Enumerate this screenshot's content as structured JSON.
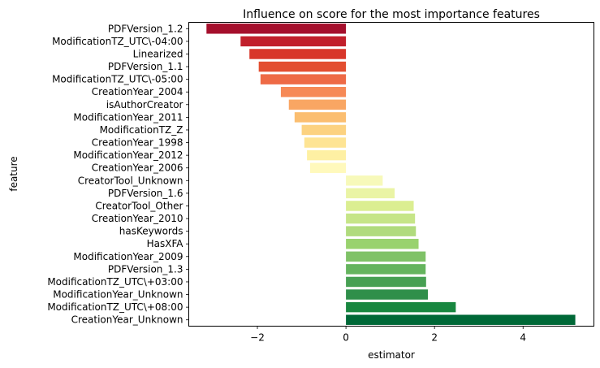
{
  "chart_data": {
    "type": "bar",
    "orientation": "horizontal",
    "title": "Influence on score for the most importance features",
    "xlabel": "estimator",
    "ylabel": "feature",
    "xlim": [
      -3.55,
      5.6
    ],
    "xticks": [
      -2,
      0,
      2,
      4
    ],
    "xtick_labels": [
      "−2",
      "0",
      "2",
      "4"
    ],
    "grid": false,
    "legend": "none",
    "colormap": "RdYlGn",
    "categories": [
      "PDFVersion_1.2",
      "ModificationTZ_UTC\\-04:00",
      "Linearized",
      "PDFVersion_1.1",
      "ModificationTZ_UTC\\-05:00",
      "CreationYear_2004",
      "isAuthorCreator",
      "ModificationYear_2011",
      "ModificationTZ_Z",
      "CreationYear_1998",
      "ModificationYear_2012",
      "CreationYear_2006",
      "CreatorTool_Unknown",
      "PDFVersion_1.6",
      "CreatorTool_Other",
      "CreationYear_2010",
      "hasKeywords",
      "HasXFA",
      "ModificationYear_2009",
      "PDFVersion_1.3",
      "ModificationTZ_UTC\\+03:00",
      "ModificationYear_Unknown",
      "ModificationTZ_UTC\\+08:00",
      "CreationYear_Unknown"
    ],
    "values": [
      -3.15,
      -2.38,
      -2.18,
      -1.97,
      -1.93,
      -1.47,
      -1.29,
      -1.16,
      -1.0,
      -0.94,
      -0.88,
      -0.81,
      0.83,
      1.1,
      1.53,
      1.56,
      1.58,
      1.64,
      1.8,
      1.8,
      1.81,
      1.85,
      2.48,
      5.18
    ],
    "colors": [
      "#a50f2c",
      "#c11f2b",
      "#d8362a",
      "#e34e30",
      "#ee6a46",
      "#f68956",
      "#f9a663",
      "#fbbe70",
      "#fcd280",
      "#fee494",
      "#fef0a3",
      "#fff9bc",
      "#f7f9ba",
      "#eaf4a5",
      "#dbee91",
      "#c6e588",
      "#b0db7d",
      "#99d26e",
      "#7fc267",
      "#65b45e",
      "#47a053",
      "#2f8f4a",
      "#188740",
      "#006837"
    ]
  }
}
